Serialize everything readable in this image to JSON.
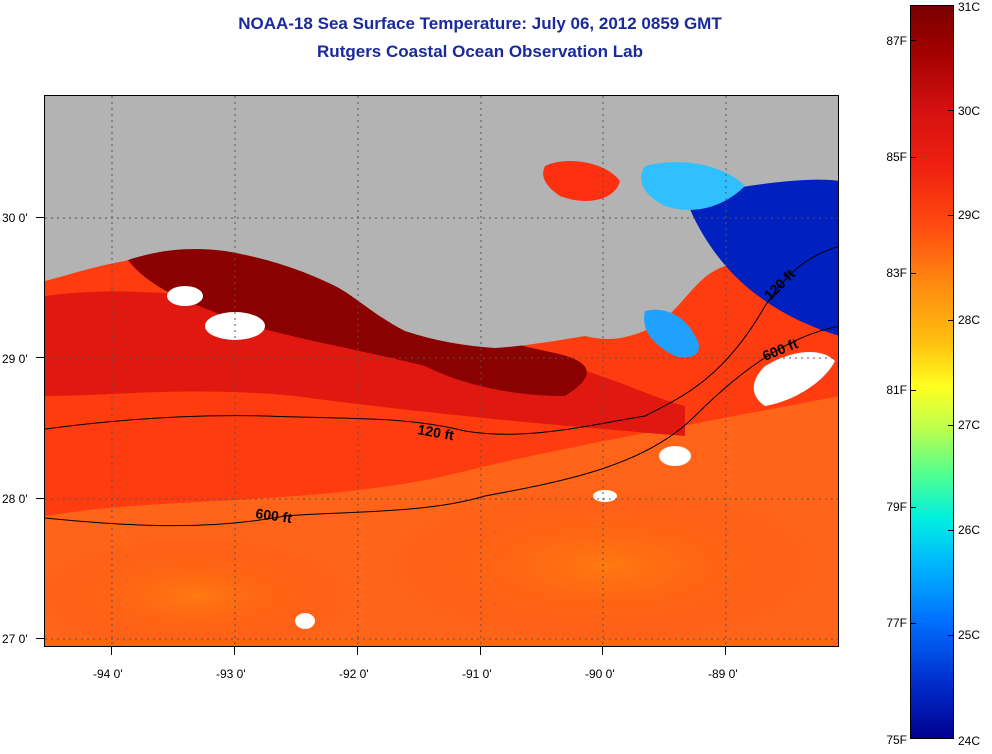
{
  "title": {
    "line1": "NOAA-18 Sea Surface Temperature:  July 06, 2012 0859 GMT",
    "line2": "Rutgers Coastal Ocean Observation Lab"
  },
  "map": {
    "lon_range": [
      -94.5,
      -88.0
    ],
    "lat_range": [
      26.95,
      30.9
    ],
    "lon_ticks": [
      "-94 0'",
      "-93 0'",
      "-92 0'",
      "-91 0'",
      "-90 0'",
      "-89 0'"
    ],
    "lat_ticks": [
      "30 0'",
      "29 0'",
      "28 0'",
      "27 0'"
    ],
    "grid": "dotted",
    "contour_labels": [
      "120 ft",
      "600 ft",
      "120 ft",
      "600 ft"
    ],
    "colors": {
      "land": "#b3b3b3",
      "hot_dark": "#8b0000",
      "hot": "#e41a10",
      "warm": "#ff5a10",
      "cool": "#0020c0",
      "cloud": "#ffffff"
    }
  },
  "colorbar": {
    "celsius_labels": [
      "31C",
      "30C",
      "29C",
      "28C",
      "27C",
      "26C",
      "25C",
      "24C"
    ],
    "fahrenheit_labels": [
      "87F",
      "85F",
      "83F",
      "81F",
      "79F",
      "77F",
      "75F"
    ],
    "range_c": [
      24,
      31
    ]
  }
}
